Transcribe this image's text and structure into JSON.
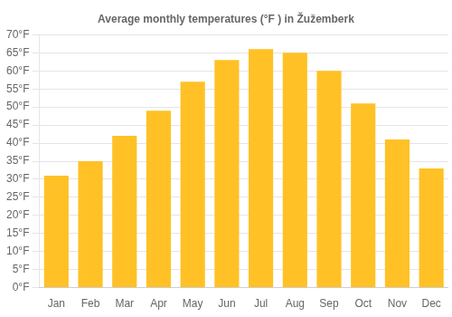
{
  "chart_data": {
    "type": "bar",
    "title": "Average monthly temperatures (°F ) in Žužemberk",
    "categories": [
      "Jan",
      "Feb",
      "Mar",
      "Apr",
      "May",
      "Jun",
      "Jul",
      "Aug",
      "Sep",
      "Oct",
      "Nov",
      "Dec"
    ],
    "values": [
      31,
      35,
      42,
      49,
      57,
      63,
      66,
      65,
      60,
      51,
      41,
      33
    ],
    "color": "#FFC125",
    "ylim": [
      0,
      70
    ],
    "yticks": [
      {
        "value": 0,
        "label": "0°F"
      },
      {
        "value": 5,
        "label": "5°F"
      },
      {
        "value": 10,
        "label": "10°F"
      },
      {
        "value": 15,
        "label": "15°F"
      },
      {
        "value": 20,
        "label": "20°F"
      },
      {
        "value": 25,
        "label": "25°F"
      },
      {
        "value": 30,
        "label": "30°F"
      },
      {
        "value": 35,
        "label": "35°F"
      },
      {
        "value": 40,
        "label": "40°F"
      },
      {
        "value": 45,
        "label": "45°F"
      },
      {
        "value": 50,
        "label": "50°F"
      },
      {
        "value": 55,
        "label": "55°F"
      },
      {
        "value": 60,
        "label": "60°F"
      },
      {
        "value": 65,
        "label": "65°F"
      },
      {
        "value": 70,
        "label": "70°F"
      }
    ],
    "grid": true
  }
}
